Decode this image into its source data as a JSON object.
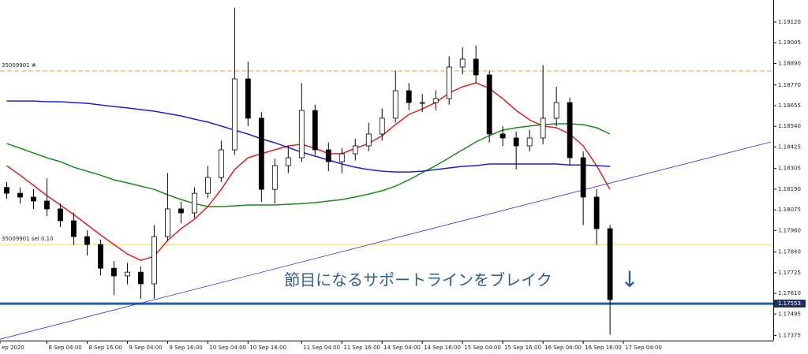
{
  "chart_data": {
    "type": "candlestick",
    "open": [
      1.182,
      1.18167,
      1.18146,
      1.18124,
      1.1808,
      1.18014,
      1.17926,
      1.17882,
      1.1775,
      1.17707,
      1.17728,
      1.17663,
      1.17926,
      1.1808,
      1.18058,
      1.18167,
      1.18255,
      1.18409,
      1.18804,
      1.18585,
      1.18189,
      1.18321,
      1.18365,
      1.18628,
      1.18409,
      1.18343,
      1.18387,
      1.18431,
      1.18497,
      1.18585,
      1.18738,
      1.18672,
      1.18672,
      1.18694,
      1.1887,
      1.18914,
      1.18826,
      1.18497,
      1.18475,
      1.18431,
      1.18475,
      1.18585,
      1.18672,
      1.18365,
      1.18146,
      1.1797
    ],
    "high": [
      1.1823,
      1.182,
      1.1819,
      1.1825,
      1.1811,
      1.1806,
      1.1796,
      1.1791,
      1.1779,
      1.1778,
      1.1776,
      1.1799,
      1.1828,
      1.1812,
      1.182,
      1.1832,
      1.1846,
      1.192,
      1.189,
      1.1862,
      1.1836,
      1.1843,
      1.1878,
      1.1866,
      1.1845,
      1.1842,
      1.1847,
      1.1856,
      1.1864,
      1.1885,
      1.1878,
      1.1872,
      1.1874,
      1.1893,
      1.1898,
      1.1899,
      1.1885,
      1.1854,
      1.1851,
      1.1852,
      1.1888,
      1.1876,
      1.187,
      1.184,
      1.1819,
      1.1799
    ],
    "low": [
      1.18137,
      1.1811,
      1.1808,
      1.1804,
      1.1798,
      1.1788,
      1.1782,
      1.1771,
      1.176,
      1.1766,
      1.1758,
      1.1758,
      1.179,
      1.18,
      1.1803,
      1.1814,
      1.1823,
      1.1838,
      1.1854,
      1.1812,
      1.1811,
      1.1828,
      1.1834,
      1.1838,
      1.1829,
      1.1828,
      1.1835,
      1.184,
      1.1846,
      1.1856,
      1.1863,
      1.1862,
      1.1863,
      1.1866,
      1.1883,
      1.1878,
      1.1845,
      1.1843,
      1.183,
      1.184,
      1.1844,
      1.1854,
      1.1832,
      1.1799,
      1.1788,
      1.1738
    ],
    "close": [
      1.18167,
      1.18146,
      1.18124,
      1.1808,
      1.18014,
      1.17926,
      1.17882,
      1.1775,
      1.17707,
      1.17728,
      1.17663,
      1.17926,
      1.1808,
      1.18058,
      1.18167,
      1.18255,
      1.18409,
      1.18804,
      1.18585,
      1.18189,
      1.18321,
      1.18365,
      1.18628,
      1.18409,
      1.18343,
      1.18387,
      1.18431,
      1.18497,
      1.18585,
      1.18738,
      1.18672,
      1.18672,
      1.18694,
      1.1887,
      1.18914,
      1.18826,
      1.18497,
      1.18475,
      1.18431,
      1.18475,
      1.18585,
      1.18672,
      1.18365,
      1.18146,
      1.1797,
      1.17575
    ],
    "series": [
      {
        "color": "#e02020",
        "values": [
          1.18321,
          1.18268,
          1.18211,
          1.18154,
          1.18102,
          1.18049,
          1.17992,
          1.17935,
          1.17882,
          1.17829,
          1.17794,
          1.17816,
          1.17904,
          1.1797,
          1.18023,
          1.18093,
          1.18189,
          1.18299,
          1.18365,
          1.18387,
          1.18409,
          1.18431,
          1.1844,
          1.18418,
          1.18387,
          1.18387,
          1.18418,
          1.18444,
          1.18488,
          1.18549,
          1.18606,
          1.18637,
          1.18672,
          1.18725,
          1.1876,
          1.18782,
          1.18751,
          1.18694,
          1.18628,
          1.18576,
          1.18541,
          1.18532,
          1.18497,
          1.18431,
          1.18321,
          1.18189
        ]
      },
      {
        "color": "#1a8a1a",
        "values": [
          1.18444,
          1.18418,
          1.18391,
          1.18365,
          1.18343,
          1.18312,
          1.1829,
          1.18268,
          1.18242,
          1.18225,
          1.18207,
          1.18189,
          1.18159,
          1.18132,
          1.1811,
          1.18093,
          1.18093,
          1.18097,
          1.18102,
          1.18102,
          1.18102,
          1.18106,
          1.1811,
          1.18115,
          1.18124,
          1.18132,
          1.18146,
          1.18163,
          1.18181,
          1.18207,
          1.18242,
          1.18282,
          1.18321,
          1.18365,
          1.18409,
          1.18453,
          1.18488,
          1.18519,
          1.18532,
          1.18541,
          1.18549,
          1.18554,
          1.18554,
          1.18549,
          1.18532,
          1.18497
        ]
      },
      {
        "color": "#2020d0",
        "values": [
          1.18681,
          1.18681,
          1.18681,
          1.18677,
          1.18677,
          1.18672,
          1.18668,
          1.18659,
          1.1865,
          1.18642,
          1.18633,
          1.18624,
          1.18611,
          1.18598,
          1.1858,
          1.18563,
          1.18541,
          1.18519,
          1.18497,
          1.1847,
          1.18448,
          1.18422,
          1.18396,
          1.18374,
          1.18352,
          1.1833,
          1.18312,
          1.18299,
          1.1829,
          1.18286,
          1.18286,
          1.1829,
          1.18299,
          1.18308,
          1.18317,
          1.18321,
          1.1833,
          1.1833,
          1.1833,
          1.1833,
          1.1833,
          1.1833,
          1.18325,
          1.18325,
          1.18321,
          1.18317
        ]
      }
    ],
    "trendline": {
      "x": [
        -0.5,
        57
      ],
      "values": [
        1.17355,
        1.18453
      ],
      "color": "#3030e0"
    },
    "hlines": [
      {
        "value": 1.18848,
        "color": "#f0a040",
        "label": "35009901 #"
      },
      {
        "value": 1.17882,
        "color": "#f0e060",
        "label": "35009901 sel 0.10"
      },
      {
        "value": 1.17553,
        "color": "#1f5fa8",
        "price_label": "1.17553"
      }
    ],
    "annotation": "節目になるサポートラインをブレイク",
    "arrow": "↓",
    "xlim": [
      -0.5,
      57
    ],
    "xticks": [
      {
        "value": -0.5,
        "label": "ep 2020"
      },
      {
        "value": 3,
        "label": "8 Sep 04:00"
      },
      {
        "value": 6,
        "label": "8 Sep 16:00"
      },
      {
        "value": 9,
        "label": "9 Sep 04:00"
      },
      {
        "value": 12,
        "label": "9 Sep 16:00"
      },
      {
        "value": 15,
        "label": "10 Sep 04:00"
      },
      {
        "value": 18,
        "label": "10 Sep 16:00"
      },
      {
        "value": 22,
        "label": "11 Sep 04:00"
      },
      {
        "value": 25,
        "label": "11 Sep 16:00"
      },
      {
        "value": 28,
        "label": "14 Sep 04:00"
      },
      {
        "value": 31,
        "label": "14 Sep 16:00"
      },
      {
        "value": 34,
        "label": "15 Sep 04:00"
      },
      {
        "value": 37,
        "label": "15 Sep 16:00"
      },
      {
        "value": 40,
        "label": "16 Sep 04:00"
      },
      {
        "value": 43,
        "label": "16 Sep 16:00"
      },
      {
        "value": 46,
        "label": "17 Sep 04:00"
      }
    ],
    "ylim": [
      1.17347,
      1.19243
    ],
    "yticks": [
      {
        "value": 1.1912,
        "label": "1.19120"
      },
      {
        "value": 1.19005,
        "label": "1.19005"
      },
      {
        "value": 1.1889,
        "label": "1.18890"
      },
      {
        "value": 1.1877,
        "label": "1.18770"
      },
      {
        "value": 1.18655,
        "label": "1.18655"
      },
      {
        "value": 1.1854,
        "label": "1.18540"
      },
      {
        "value": 1.18425,
        "label": "1.18425"
      },
      {
        "value": 1.18305,
        "label": "1.18305"
      },
      {
        "value": 1.1819,
        "label": "1.18190"
      },
      {
        "value": 1.18075,
        "label": "1.18075"
      },
      {
        "value": 1.1796,
        "label": "1.17960"
      },
      {
        "value": 1.1784,
        "label": "1.17840"
      },
      {
        "value": 1.17725,
        "label": "1.17725"
      },
      {
        "value": 1.1761,
        "label": "1.17610"
      },
      {
        "value": 1.17495,
        "label": "1.17495"
      },
      {
        "value": 1.17375,
        "label": "1.17375"
      }
    ]
  }
}
